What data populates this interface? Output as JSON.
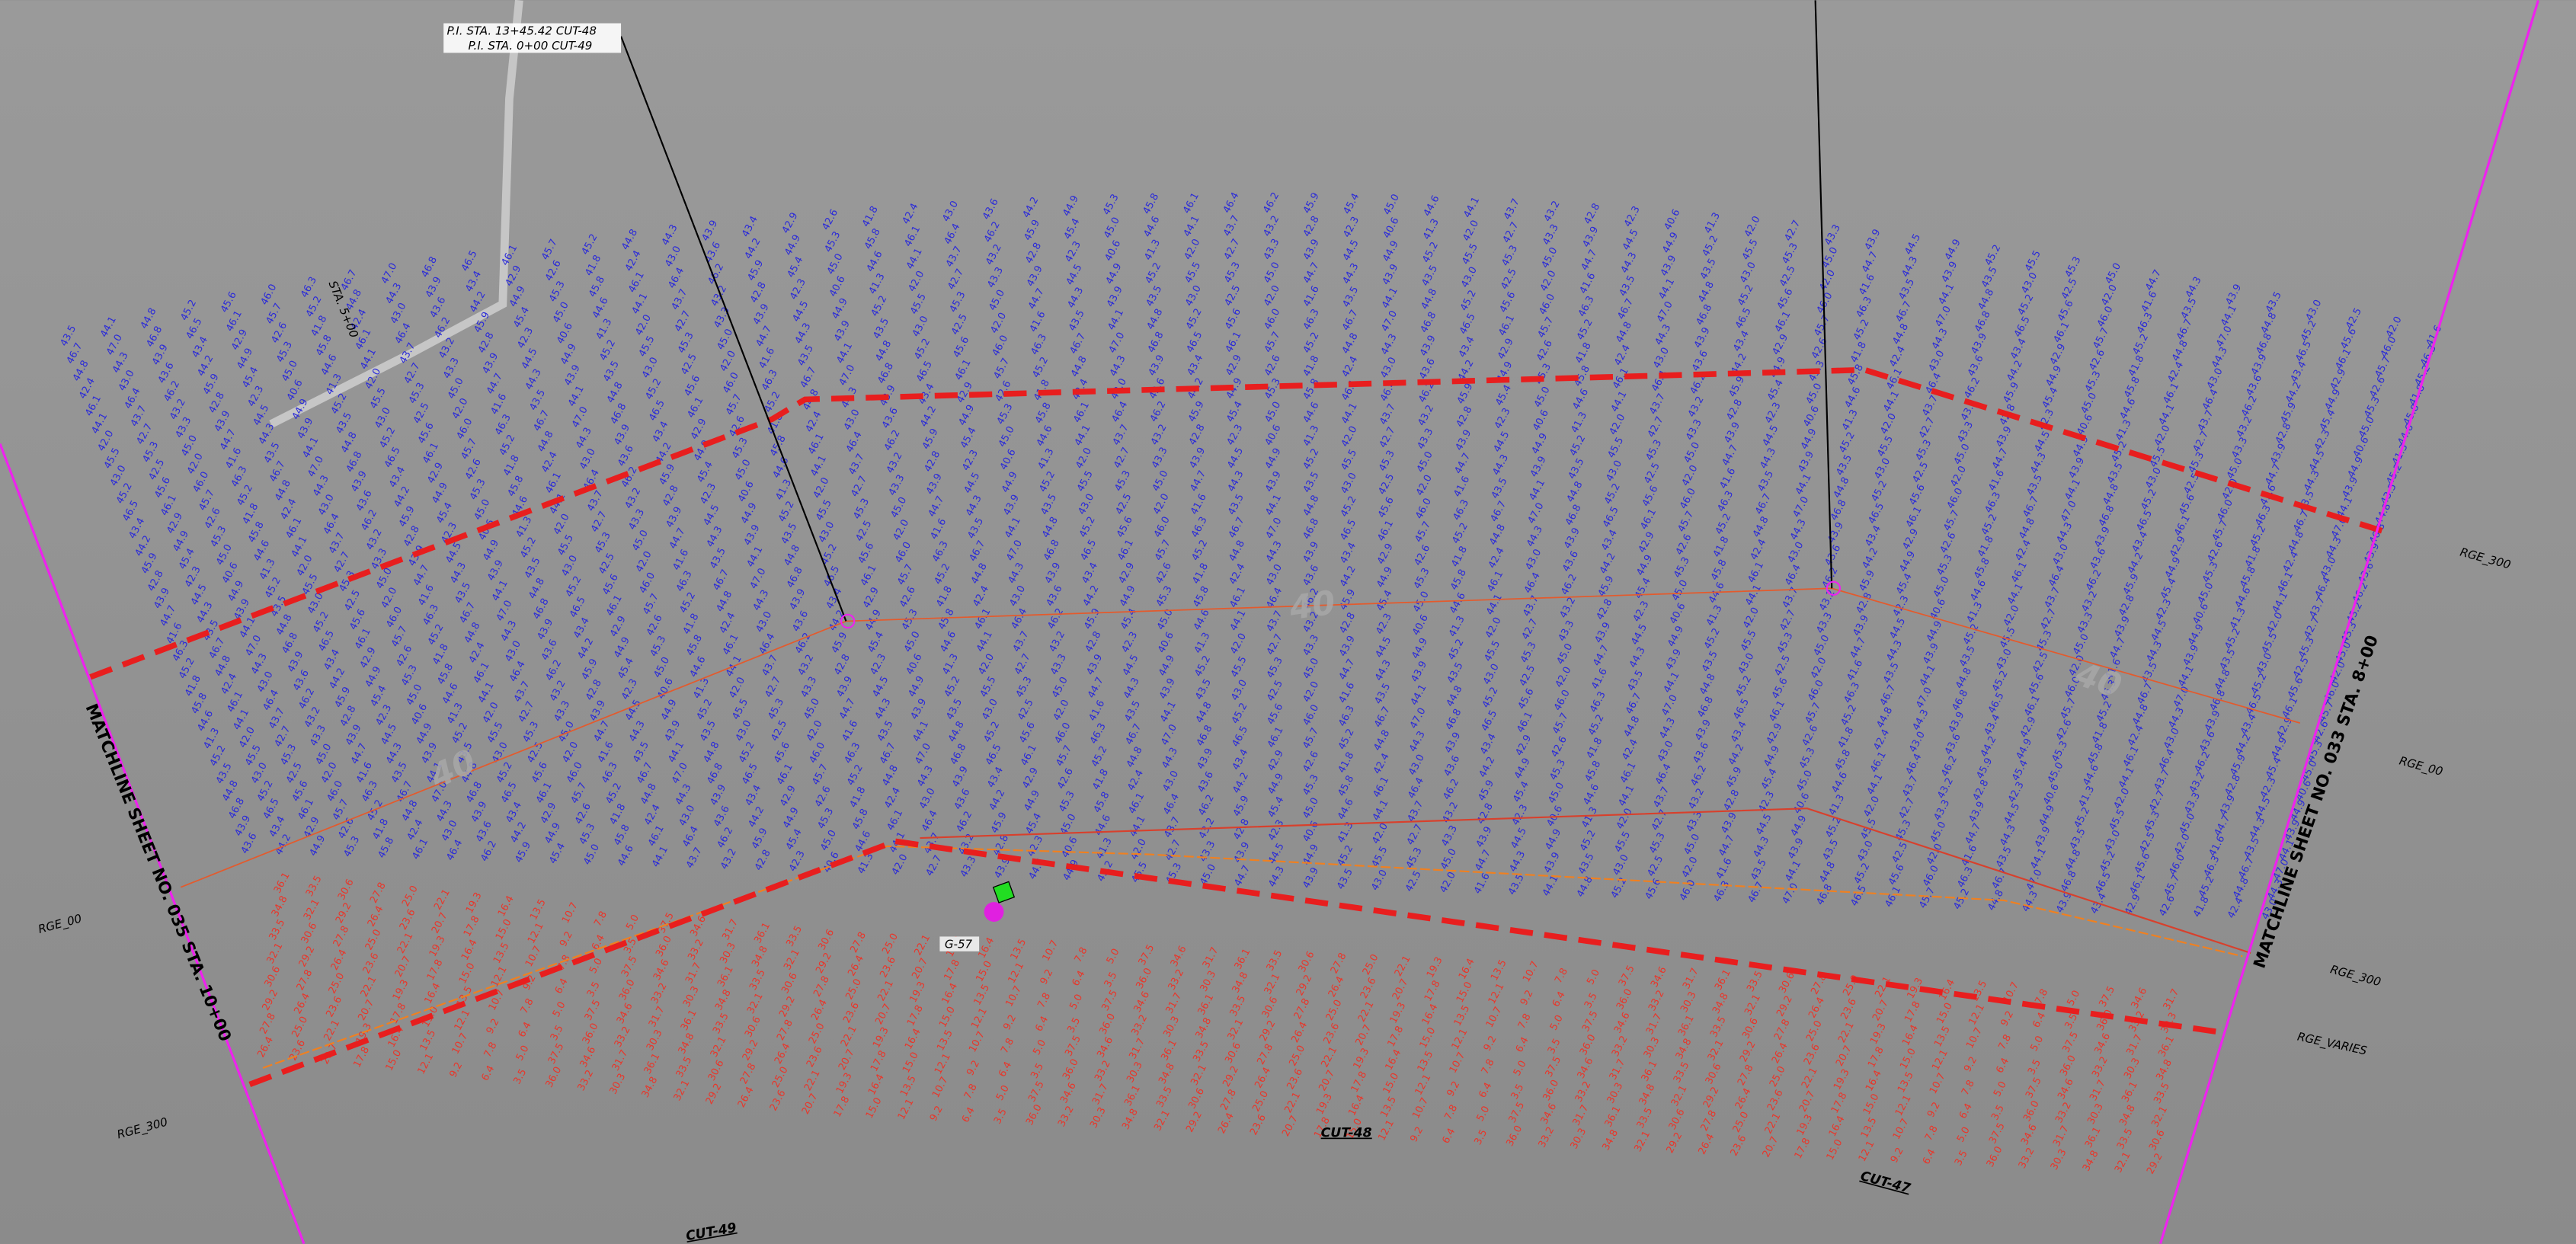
{
  "callouts": {
    "pi_1": "P.I. STA. 13+45.42 CUT-48",
    "pi_2": "P.I. STA. 0+00 CUT-49"
  },
  "station": "STA. 5+00",
  "matchlines": {
    "left": "MATCHLINE SHEET NO. 035 STA. 10+00",
    "right": "MATCHLINE SHEET NO. 033 STA. 8+00"
  },
  "ranges": {
    "r1": "RGE_300",
    "r2": "RGE_00",
    "r3": "RGE_300",
    "r4": "RGE_VARIES",
    "r5": "RGE_00",
    "r6": "RGE_300"
  },
  "cuts": {
    "c1": "CUT-48",
    "c2": "CUT-47",
    "c3": "CUT-49"
  },
  "contours": {
    "a": "40",
    "b": "40",
    "c": "40"
  },
  "gauge": "G-57",
  "soundings_blue": [
    "43.5",
    "44.1",
    "44.8",
    "45.2",
    "45.6",
    "46.0",
    "46.3",
    "46.7",
    "47.0",
    "46.8",
    "46.5",
    "46.1",
    "45.7",
    "45.2",
    "44.8",
    "44.3",
    "43.9",
    "43.4",
    "42.9",
    "42.6",
    "41.8",
    "42.4",
    "43.0",
    "43.6",
    "44.2",
    "44.9",
    "45.3",
    "45.8",
    "46.1",
    "46.4",
    "46.2",
    "45.9",
    "45.4",
    "45.0",
    "44.6",
    "44.1",
    "43.7",
    "43.2",
    "42.8",
    "42.3",
    "40.6",
    "41.3",
    "42.0",
    "42.7",
    "43.3",
    "43.9",
    "44.5",
    "44.9",
    "45.2",
    "45.5",
    "45.3",
    "45.0",
    "44.7",
    "44.3",
    "43.9",
    "43.5",
    "43.0",
    "42.5",
    "42.0",
    "41.6"
  ],
  "soundings_red": [
    "36.1",
    "34.8",
    "33.5",
    "32.1",
    "30.6",
    "29.2",
    "27.8",
    "26.4",
    "25.0",
    "23.6",
    "22.1",
    "20.7",
    "19.3",
    "17.8",
    "16.4",
    "15.0",
    "13.5",
    "12.1",
    "10.7",
    "9.2",
    "7.8",
    "6.4",
    "5.0",
    "3.5",
    "37.5",
    "36.0",
    "34.6",
    "33.2",
    "31.7",
    "30.3"
  ]
}
